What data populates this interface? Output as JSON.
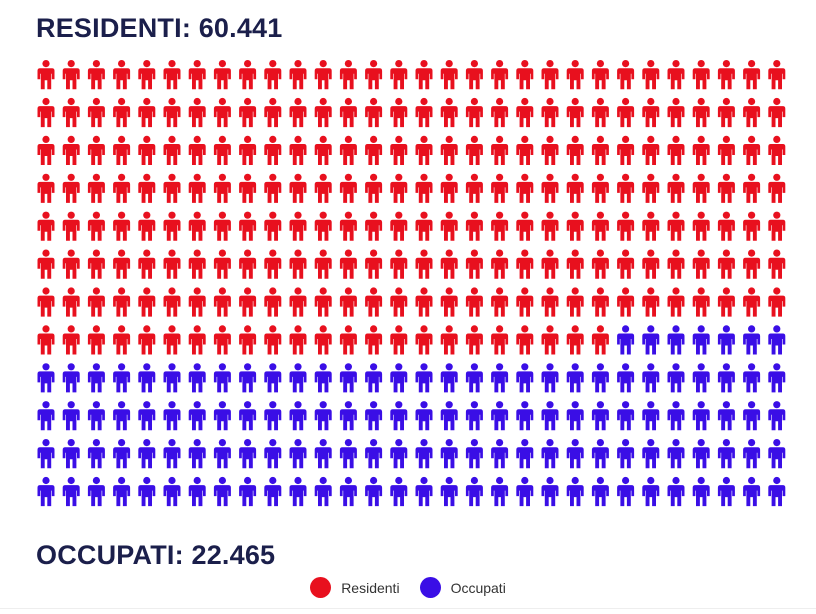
{
  "headline_top": "RESIDENTI: 60.441",
  "headline_bottom": "OCCUPATI: 22.465",
  "colors": {
    "residenti": "#e8101e",
    "occupati": "#3a0ee6",
    "text": "#1b1f4b"
  },
  "chart_data": {
    "type": "pictogram",
    "rows": 12,
    "columns": 30,
    "series": [
      {
        "name": "Residenti",
        "count": 233,
        "color": "#e8101e"
      },
      {
        "name": "Occupati",
        "count": 127,
        "color": "#3a0ee6"
      }
    ],
    "legend_placement": "bottom-center"
  },
  "legend": [
    {
      "label": "Residenti",
      "color": "#e8101e"
    },
    {
      "label": "Occupati",
      "color": "#3a0ee6"
    }
  ]
}
